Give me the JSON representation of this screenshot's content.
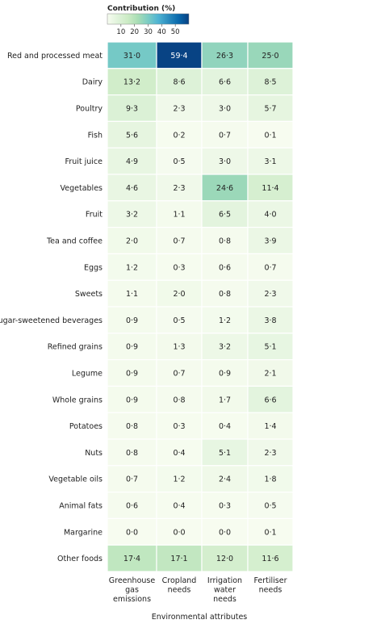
{
  "chart_data": {
    "type": "heatmap",
    "legend": {
      "title": "Contribution (%)",
      "ticks": [
        10,
        20,
        30,
        40,
        50
      ],
      "range": [
        0,
        60
      ],
      "colors": [
        "#f7fcf0",
        "#e0f3db",
        "#ccebc5",
        "#a8ddb5",
        "#7bccc4",
        "#4eb3d3",
        "#2b8cbe",
        "#0868ac",
        "#084081"
      ]
    },
    "rows": [
      "Red and processed meat",
      "Dairy",
      "Poultry",
      "Fish",
      "Fruit juice",
      "Vegetables",
      "Fruit",
      "Tea and coffee",
      "Eggs",
      "Sweets",
      "Sugar-sweetened beverages",
      "Refined grains",
      "Legume",
      "Whole grains",
      "Potatoes",
      "Nuts",
      "Vegetable oils",
      "Animal fats",
      "Margarine",
      "Other foods"
    ],
    "columns": [
      [
        "Greenhouse",
        "gas",
        "emissions"
      ],
      [
        "Cropland",
        "needs"
      ],
      [
        "Irrigation",
        "water",
        "needs"
      ],
      [
        "Fertiliser",
        "needs"
      ]
    ],
    "values": [
      [
        31.0,
        59.4,
        26.3,
        25.0
      ],
      [
        13.2,
        8.6,
        6.6,
        8.5
      ],
      [
        9.3,
        2.3,
        3.0,
        5.7
      ],
      [
        5.6,
        0.2,
        0.7,
        0.1
      ],
      [
        4.9,
        0.5,
        3.0,
        3.1
      ],
      [
        4.6,
        2.3,
        24.6,
        11.4
      ],
      [
        3.2,
        1.1,
        6.5,
        4.0
      ],
      [
        2.0,
        0.7,
        0.8,
        3.9
      ],
      [
        1.2,
        0.3,
        0.6,
        0.7
      ],
      [
        1.1,
        2.0,
        0.8,
        2.3
      ],
      [
        0.9,
        0.5,
        1.2,
        3.8
      ],
      [
        0.9,
        1.3,
        3.2,
        5.1
      ],
      [
        0.9,
        0.7,
        0.9,
        2.1
      ],
      [
        0.9,
        0.8,
        1.7,
        6.6
      ],
      [
        0.8,
        0.3,
        0.4,
        1.4
      ],
      [
        0.8,
        0.4,
        5.1,
        2.3
      ],
      [
        0.7,
        1.2,
        2.4,
        1.8
      ],
      [
        0.6,
        0.4,
        0.3,
        0.5
      ],
      [
        0.0,
        0.0,
        0.0,
        0.1
      ],
      [
        17.4,
        17.1,
        12.0,
        11.6
      ]
    ],
    "xlabel": "Environmental attributes"
  }
}
